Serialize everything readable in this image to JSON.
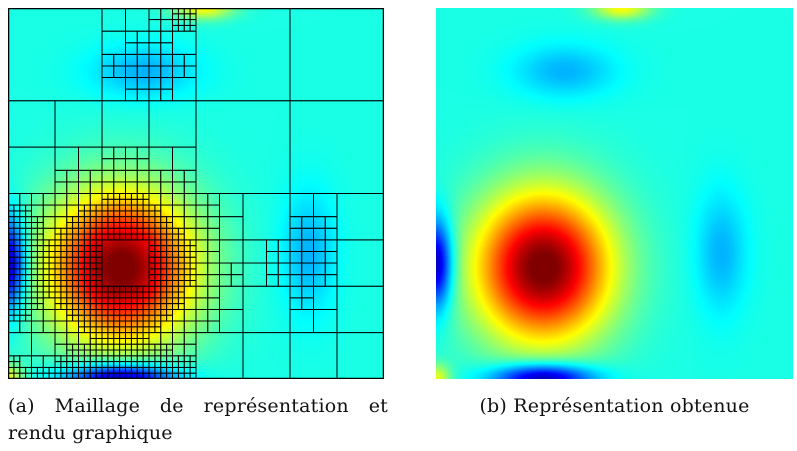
{
  "figure": {
    "panel_a": {
      "caption_tag": "(a)",
      "caption_text": "Maillage de représentation et rendu graphique"
    },
    "panel_b": {
      "caption_tag": "(b)",
      "caption_text": "Représentation obtenue"
    },
    "colormap": "jet"
  }
}
